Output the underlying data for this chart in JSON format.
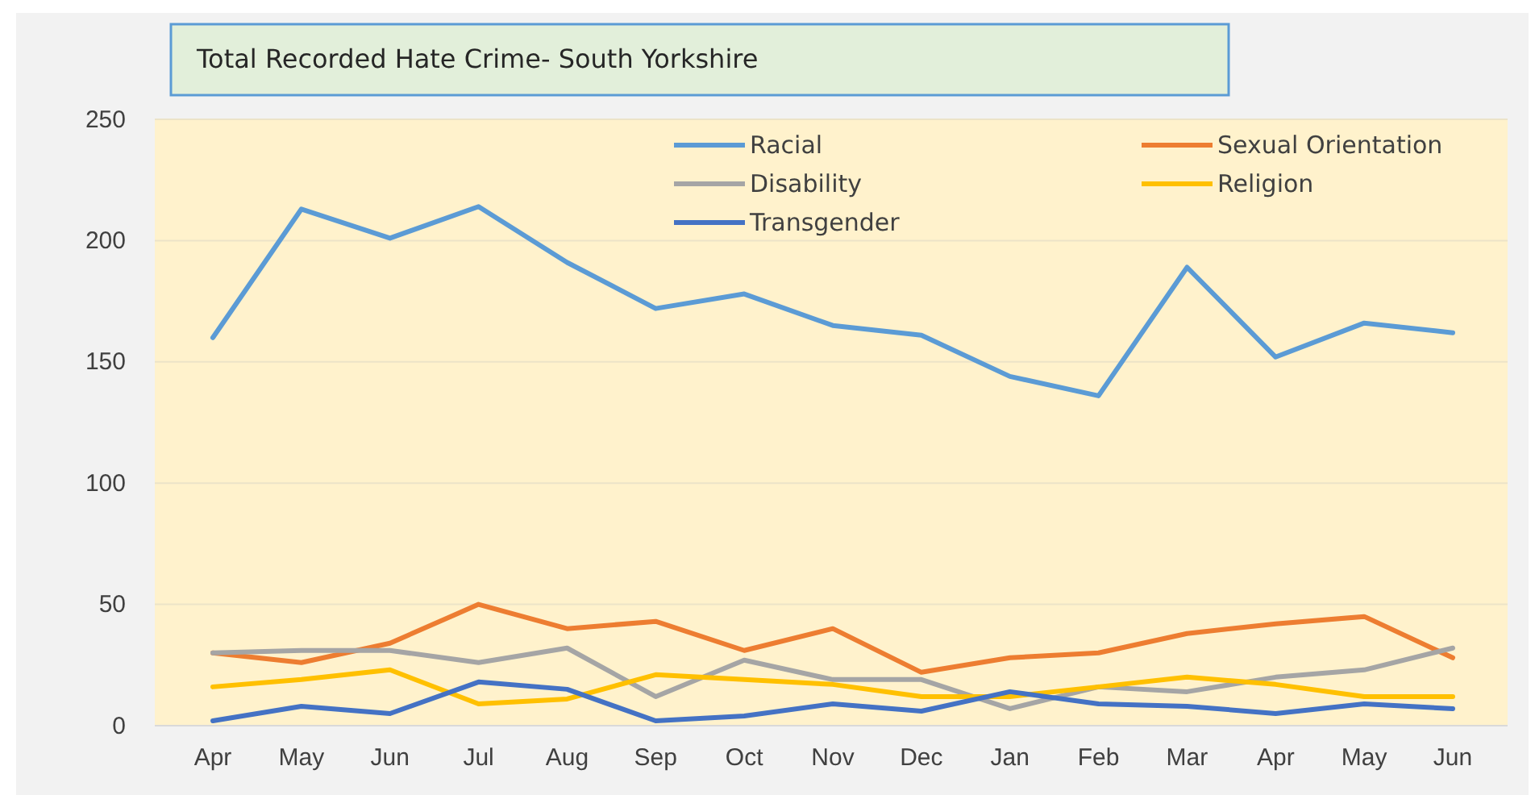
{
  "chart_data": {
    "type": "line",
    "title": "Total Recorded Hate Crime- South Yorkshire",
    "categories": [
      "Apr",
      "May",
      "Jun",
      "Jul",
      "Aug",
      "Sep",
      "Oct",
      "Nov",
      "Dec",
      "Jan",
      "Feb",
      "Mar",
      "Apr",
      "May",
      "Jun"
    ],
    "series": [
      {
        "name": "Racial",
        "color": "#5b9bd5",
        "values": [
          160,
          213,
          201,
          214,
          191,
          172,
          178,
          165,
          161,
          144,
          136,
          189,
          152,
          166,
          162
        ]
      },
      {
        "name": "Sexual Orientation",
        "color": "#ed7d31",
        "values": [
          30,
          26,
          34,
          50,
          40,
          43,
          31,
          40,
          22,
          28,
          30,
          38,
          42,
          45,
          28
        ]
      },
      {
        "name": "Disability",
        "color": "#a5a5a5",
        "values": [
          30,
          31,
          31,
          26,
          32,
          12,
          27,
          19,
          19,
          7,
          16,
          14,
          20,
          23,
          32
        ]
      },
      {
        "name": "Religion",
        "color": "#ffc000",
        "values": [
          16,
          19,
          23,
          9,
          11,
          21,
          19,
          17,
          12,
          12,
          16,
          20,
          17,
          12,
          12
        ]
      },
      {
        "name": "Transgender",
        "color": "#4472c4",
        "values": [
          2,
          8,
          5,
          18,
          15,
          2,
          4,
          9,
          6,
          14,
          9,
          8,
          5,
          9,
          7
        ]
      }
    ],
    "ylim": [
      0,
      250
    ],
    "yticks": [
      0,
      50,
      100,
      150,
      200,
      250
    ],
    "grid": "y",
    "legend": "top",
    "marker": "none",
    "line_style": "solid"
  }
}
